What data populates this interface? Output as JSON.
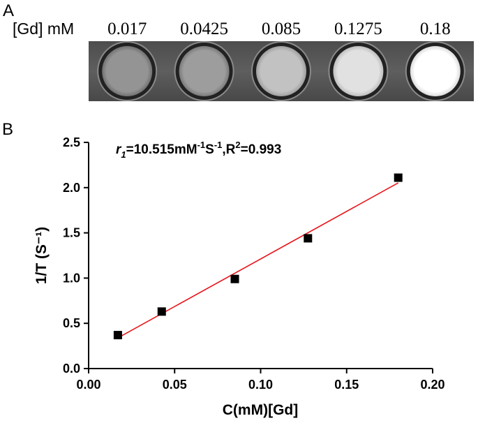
{
  "panel_a": {
    "letter": "A",
    "row_label": "[Gd] mM",
    "samples": [
      {
        "concentration": "0.017",
        "intensity": 0.42
      },
      {
        "concentration": "0.0425",
        "intensity": 0.47
      },
      {
        "concentration": "0.085",
        "intensity": 0.67
      },
      {
        "concentration": "0.1275",
        "intensity": 0.84
      },
      {
        "concentration": "0.18",
        "intensity": 1.0
      }
    ]
  },
  "panel_b": {
    "letter": "B"
  },
  "chart_data": {
    "type": "scatter",
    "title": "",
    "xlabel": "C(mM)[Gd]",
    "ylabel": "1/T (S⁻¹)",
    "xlim": [
      0,
      0.2
    ],
    "ylim": [
      0,
      2.5
    ],
    "xticks": [
      "0.00",
      "0.05",
      "0.10",
      "0.15",
      "0.20"
    ],
    "yticks": [
      "0.0",
      "0.5",
      "1.0",
      "1.5",
      "2.0",
      "2.5"
    ],
    "grid": false,
    "annotation": {
      "r_symbol": "r",
      "r_subscript": "1",
      "rest_1": "=10.515mM",
      "exp_1": "-1",
      "rest_2": "S",
      "exp_2": "-1",
      "rest_3": ",R",
      "exp_3": "2",
      "rest_4": "=0.993"
    },
    "series": [
      {
        "marker": "square",
        "color": "#000000",
        "points": [
          {
            "x": 0.017,
            "y": 0.37
          },
          {
            "x": 0.0425,
            "y": 0.63
          },
          {
            "x": 0.085,
            "y": 0.99
          },
          {
            "x": 0.1275,
            "y": 1.44
          },
          {
            "x": 0.18,
            "y": 2.11
          }
        ]
      }
    ],
    "fit_line": {
      "color": "#e8141a",
      "slope": 10.515,
      "intercept": 0.16,
      "x_start": 0.017,
      "x_end": 0.18
    }
  }
}
